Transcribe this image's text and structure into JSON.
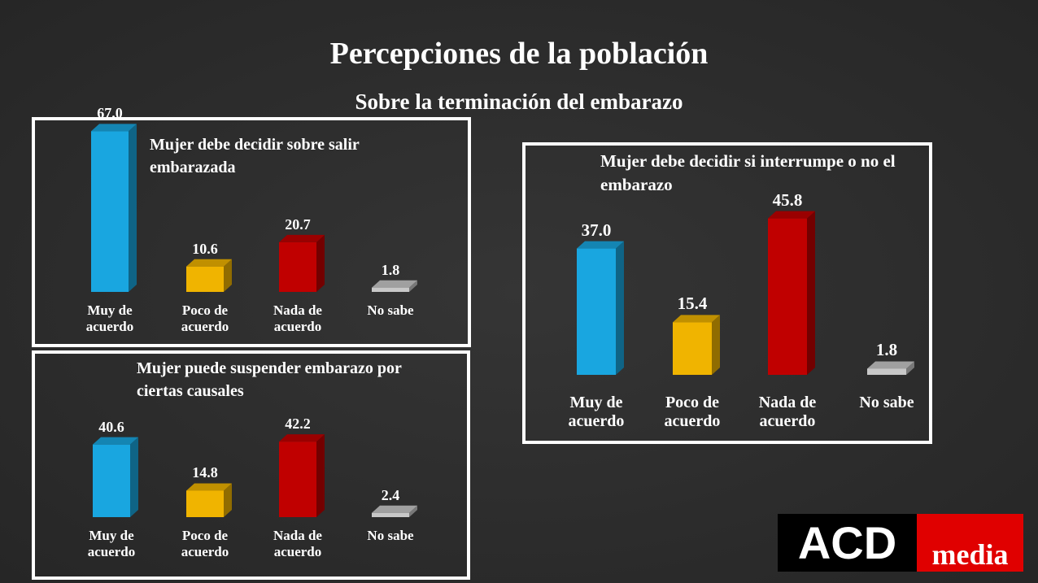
{
  "title": "Percepciones de la población",
  "subtitle": "Sobre la terminación del embarazo",
  "chart_data": [
    {
      "type": "bar",
      "title": "Mujer debe decidir sobre salir embarazada",
      "categories": [
        "Muy de acuerdo",
        "Poco de acuerdo",
        "Nada de acuerdo",
        "No sabe"
      ],
      "values": [
        67.0,
        10.6,
        20.7,
        1.8
      ],
      "value_labels": [
        "67.0",
        "10.6",
        "20.7",
        "1.8"
      ],
      "colors": [
        "#19a6e0",
        "#f0b400",
        "#c00000",
        "#c8c8c8"
      ]
    },
    {
      "type": "bar",
      "title": "Mujer puede suspender embarazo por ciertas causales",
      "categories": [
        "Muy de acuerdo",
        "Poco de acuerdo",
        "Nada de acuerdo",
        "No sabe"
      ],
      "values": [
        40.6,
        14.8,
        42.2,
        2.4
      ],
      "value_labels": [
        "40.6",
        "14.8",
        "42.2",
        "2.4"
      ],
      "colors": [
        "#19a6e0",
        "#f0b400",
        "#c00000",
        "#c8c8c8"
      ]
    },
    {
      "type": "bar",
      "title": "Mujer debe decidir si interrumpe o no el embarazo",
      "categories": [
        "Muy de acuerdo",
        "Poco de acuerdo",
        "Nada de acuerdo",
        "No sabe"
      ],
      "values": [
        37.0,
        15.4,
        45.8,
        1.8
      ],
      "value_labels": [
        "37.0",
        "15.4",
        "45.8",
        "1.8"
      ],
      "colors": [
        "#19a6e0",
        "#f0b400",
        "#c00000",
        "#c8c8c8"
      ]
    }
  ],
  "logo": {
    "left": "ACD",
    "right": "media"
  }
}
